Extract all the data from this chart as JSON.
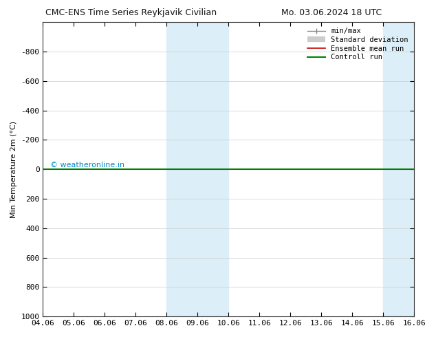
{
  "title_left": "CMC-ENS Time Series Reykjavik Civilian",
  "title_right": "Mo. 03.06.2024 18 UTC",
  "ylabel": "Min Temperature 2m (°C)",
  "xlabel_ticks": [
    "04.06",
    "05.06",
    "06.06",
    "07.06",
    "08.06",
    "09.06",
    "10.06",
    "11.06",
    "12.06",
    "13.06",
    "14.06",
    "15.06",
    "16.06"
  ],
  "xlim": [
    0,
    12
  ],
  "ylim": [
    1000,
    -1000
  ],
  "ytick_values": [
    -800,
    -600,
    -400,
    -200,
    0,
    200,
    400,
    600,
    800,
    1000
  ],
  "shaded_regions": [
    {
      "xstart": 4,
      "xend": 6,
      "color": "#dceef8"
    },
    {
      "xstart": 11,
      "xend": 13,
      "color": "#dceef8"
    }
  ],
  "control_run_color": "#008000",
  "ensemble_mean_color": "#cc0000",
  "watermark_text": "© weatheronline.in",
  "watermark_color": "#0088cc",
  "bg_color": "#ffffff",
  "legend_items": [
    {
      "label": "min/max",
      "color": "#888888",
      "lw": 1.0
    },
    {
      "label": "Standard deviation",
      "color": "#cccccc",
      "lw": 6
    },
    {
      "label": "Ensemble mean run",
      "color": "#cc0000",
      "lw": 1.2
    },
    {
      "label": "Controll run",
      "color": "#008000",
      "lw": 1.5
    }
  ],
  "control_run_y": 0,
  "ensemble_mean_y": 0
}
